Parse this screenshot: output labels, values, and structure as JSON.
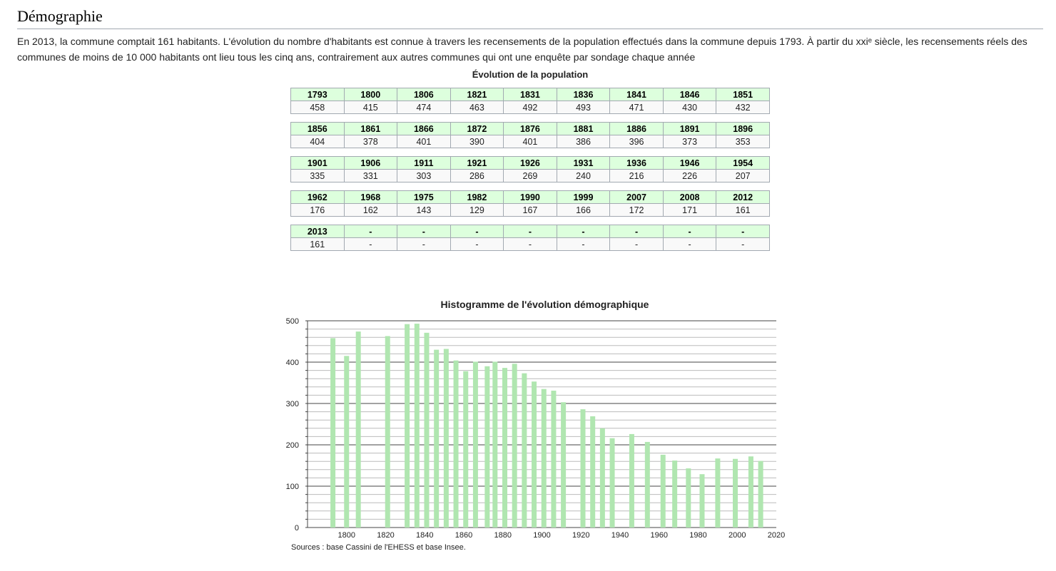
{
  "section": {
    "heading": "Démographie",
    "intro": "En 2013, la commune comptait 161 habitants. L'évolution du nombre d'habitants est connue à travers les recensements de la population effectués dans la commune depuis 1793. À partir du xxiᵉ siècle, les recensements réels des communes de moins de 10 000 habitants ont lieu tous les cinq ans, contrairement aux autres communes qui ont une enquête par sondage chaque année"
  },
  "population_table": {
    "caption": "Évolution de la population",
    "rows": [
      {
        "years": [
          "1793",
          "1800",
          "1806",
          "1821",
          "1831",
          "1836",
          "1841",
          "1846",
          "1851"
        ],
        "values": [
          "458",
          "415",
          "474",
          "463",
          "492",
          "493",
          "471",
          "430",
          "432"
        ]
      },
      {
        "years": [
          "1856",
          "1861",
          "1866",
          "1872",
          "1876",
          "1881",
          "1886",
          "1891",
          "1896"
        ],
        "values": [
          "404",
          "378",
          "401",
          "390",
          "401",
          "386",
          "396",
          "373",
          "353"
        ]
      },
      {
        "years": [
          "1901",
          "1906",
          "1911",
          "1921",
          "1926",
          "1931",
          "1936",
          "1946",
          "1954"
        ],
        "values": [
          "335",
          "331",
          "303",
          "286",
          "269",
          "240",
          "216",
          "226",
          "207"
        ]
      },
      {
        "years": [
          "1962",
          "1968",
          "1975",
          "1982",
          "1990",
          "1999",
          "2007",
          "2008",
          "2012"
        ],
        "values": [
          "176",
          "162",
          "143",
          "129",
          "167",
          "166",
          "172",
          "171",
          "161"
        ]
      },
      {
        "years": [
          "2013",
          "-",
          "-",
          "-",
          "-",
          "-",
          "-",
          "-",
          "-"
        ],
        "values": [
          "161",
          "-",
          "-",
          "-",
          "-",
          "-",
          "-",
          "-",
          "-"
        ]
      }
    ]
  },
  "chart_data": {
    "type": "bar",
    "title": "Histogramme de l'évolution démographique",
    "xlabel": "",
    "ylabel": "",
    "x": [
      1793,
      1800,
      1806,
      1821,
      1831,
      1836,
      1841,
      1846,
      1851,
      1856,
      1861,
      1866,
      1872,
      1876,
      1881,
      1886,
      1891,
      1896,
      1901,
      1906,
      1911,
      1921,
      1926,
      1931,
      1936,
      1946,
      1954,
      1962,
      1968,
      1975,
      1982,
      1990,
      1999,
      2007,
      2012
    ],
    "values": [
      458,
      415,
      474,
      463,
      492,
      493,
      471,
      430,
      432,
      404,
      378,
      401,
      390,
      401,
      386,
      396,
      373,
      353,
      335,
      331,
      303,
      286,
      269,
      240,
      216,
      226,
      207,
      176,
      162,
      143,
      129,
      167,
      166,
      172,
      161
    ],
    "xlim": [
      1780,
      2020
    ],
    "ylim": [
      0,
      500
    ],
    "xticks": [
      "1800",
      "1820",
      "1840",
      "1860",
      "1880",
      "1900",
      "1920",
      "1940",
      "1960",
      "1980",
      "2000",
      "2020"
    ],
    "yticks": [
      "0",
      "100",
      "200",
      "300",
      "400",
      "500"
    ],
    "bar_color": "#b0e6b0",
    "grid": true
  },
  "source": "Sources : base Cassini de l'EHESS et base Insee."
}
